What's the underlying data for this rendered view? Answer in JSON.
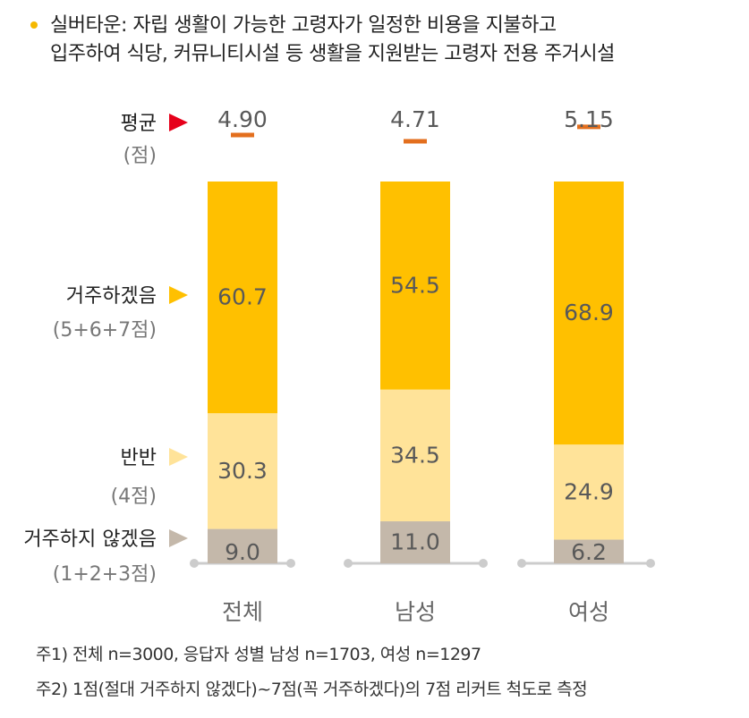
{
  "header": {
    "line1": "실버타운: 자립 생활이 가능한 고령자가 일정한 비용을 지불하고",
    "line2": "입주하여 식당, 커뮤니티시설 등 생활을 지원받는 고령자 전용 주거시설"
  },
  "chart_data": {
    "type": "bar",
    "stacked": true,
    "categories": [
      "전체",
      "남성",
      "여성"
    ],
    "series": [
      {
        "name": "거주하지 않겠음",
        "sublabel": "(1+2+3점)",
        "values": [
          9.0,
          11.0,
          6.2
        ],
        "labels": [
          "9.0",
          "11.0",
          "6.2"
        ],
        "color": "#C4B8AA"
      },
      {
        "name": "반반",
        "sublabel": "(4점)",
        "values": [
          30.3,
          34.5,
          24.9
        ],
        "labels": [
          "30.3",
          "34.5",
          "24.9"
        ],
        "color": "#FFE399"
      },
      {
        "name": "거주하겠음",
        "sublabel": "(5+6+7점)",
        "values": [
          60.7,
          54.5,
          68.9
        ],
        "labels": [
          "60.7",
          "54.5",
          "68.9"
        ],
        "color": "#FFC000"
      }
    ],
    "average": {
      "label": "평균",
      "sublabel": "(점)",
      "values": [
        4.9,
        4.71,
        5.15
      ],
      "labels": [
        "4.90",
        "4.71",
        "5.15"
      ],
      "scale": [
        1,
        7
      ],
      "color": "#E36F1E"
    },
    "ylim": [
      0,
      100
    ],
    "legend_position": "left"
  },
  "colors": {
    "arrow_average": "#E6001A",
    "axis": "#CCCCCC",
    "value_text": "#595959",
    "category_text": "#666666"
  },
  "footnotes": [
    "주1) 전체 n=3000, 응답자 성별 남성 n=1703, 여성 n=1297",
    "주2) 1점(절대 거주하지 않겠다)~7점(꼭 거주하겠다)의 7점 리커트 척도로 측정"
  ]
}
